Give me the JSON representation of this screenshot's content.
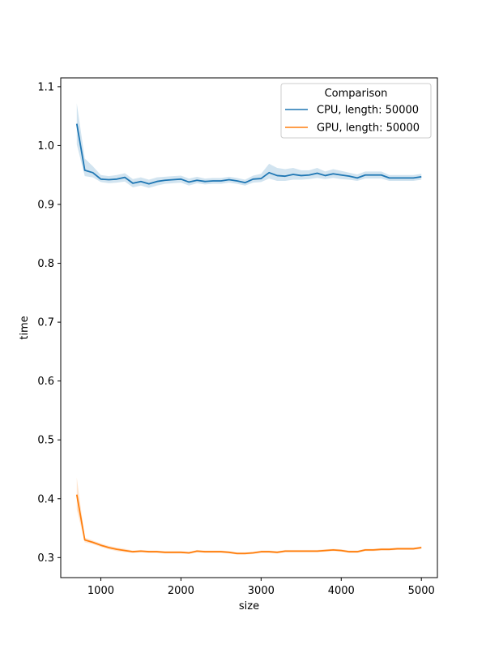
{
  "chart_data": {
    "type": "line",
    "title": "",
    "xlabel": "size",
    "ylabel": "time",
    "xlim": [
      500,
      5200
    ],
    "ylim": [
      0.266,
      1.115
    ],
    "x_ticks": [
      1000,
      2000,
      3000,
      4000,
      5000
    ],
    "y_ticks": [
      0.3,
      0.4,
      0.5,
      0.6,
      0.7,
      0.8,
      0.9,
      1.0,
      1.1
    ],
    "x_tick_labels": [
      "1000",
      "2000",
      "3000",
      "4000",
      "5000"
    ],
    "y_tick_labels": [
      "0.3",
      "0.4",
      "0.5",
      "0.6",
      "0.7",
      "0.8",
      "0.9",
      "1.0",
      "1.1"
    ],
    "grid": false,
    "legend": {
      "title": "Comparison",
      "placement": "top-right"
    },
    "x": [
      700,
      800,
      900,
      1000,
      1100,
      1200,
      1300,
      1400,
      1500,
      1600,
      1700,
      1800,
      1900,
      2000,
      2100,
      2200,
      2300,
      2400,
      2500,
      2600,
      2700,
      2800,
      2900,
      3000,
      3100,
      3200,
      3300,
      3400,
      3500,
      3600,
      3700,
      3800,
      3900,
      4000,
      4100,
      4200,
      4300,
      4400,
      4500,
      4600,
      4700,
      4800,
      4900,
      5000
    ],
    "series": [
      {
        "name": "CPU, length: 50000",
        "color": "#1f77b4",
        "values": [
          1.037,
          0.958,
          0.954,
          0.943,
          0.942,
          0.943,
          0.946,
          0.936,
          0.939,
          0.935,
          0.939,
          0.941,
          0.942,
          0.943,
          0.938,
          0.941,
          0.939,
          0.94,
          0.94,
          0.942,
          0.94,
          0.937,
          0.943,
          0.944,
          0.954,
          0.949,
          0.948,
          0.951,
          0.949,
          0.95,
          0.953,
          0.949,
          0.952,
          0.95,
          0.948,
          0.945,
          0.95,
          0.95,
          0.95,
          0.945,
          0.945,
          0.945,
          0.945,
          0.947
        ],
        "lower": [
          1.002,
          0.948,
          0.946,
          0.938,
          0.936,
          0.937,
          0.939,
          0.929,
          0.932,
          0.928,
          0.932,
          0.935,
          0.936,
          0.937,
          0.932,
          0.936,
          0.934,
          0.935,
          0.935,
          0.937,
          0.935,
          0.932,
          0.937,
          0.938,
          0.944,
          0.94,
          0.94,
          0.942,
          0.942,
          0.943,
          0.945,
          0.943,
          0.945,
          0.943,
          0.942,
          0.94,
          0.944,
          0.944,
          0.944,
          0.94,
          0.94,
          0.94,
          0.94,
          0.942
        ],
        "upper": [
          1.072,
          0.978,
          0.965,
          0.95,
          0.948,
          0.95,
          0.953,
          0.943,
          0.946,
          0.942,
          0.946,
          0.947,
          0.948,
          0.949,
          0.944,
          0.947,
          0.944,
          0.945,
          0.945,
          0.947,
          0.945,
          0.942,
          0.949,
          0.952,
          0.969,
          0.962,
          0.96,
          0.962,
          0.958,
          0.958,
          0.962,
          0.956,
          0.96,
          0.957,
          0.954,
          0.951,
          0.956,
          0.956,
          0.956,
          0.95,
          0.95,
          0.95,
          0.95,
          0.952
        ]
      },
      {
        "name": "GPU, length: 50000",
        "color": "#ff7f0e",
        "values": [
          0.407,
          0.33,
          0.326,
          0.321,
          0.317,
          0.314,
          0.312,
          0.31,
          0.311,
          0.31,
          0.31,
          0.309,
          0.309,
          0.309,
          0.308,
          0.311,
          0.31,
          0.31,
          0.31,
          0.309,
          0.307,
          0.307,
          0.308,
          0.31,
          0.31,
          0.309,
          0.311,
          0.311,
          0.311,
          0.311,
          0.311,
          0.312,
          0.313,
          0.312,
          0.31,
          0.31,
          0.313,
          0.313,
          0.314,
          0.314,
          0.315,
          0.315,
          0.315,
          0.317
        ],
        "lower": [
          0.382,
          0.326,
          0.323,
          0.318,
          0.314,
          0.311,
          0.309,
          0.308,
          0.309,
          0.308,
          0.308,
          0.307,
          0.307,
          0.307,
          0.306,
          0.309,
          0.308,
          0.308,
          0.308,
          0.307,
          0.305,
          0.305,
          0.306,
          0.308,
          0.308,
          0.307,
          0.309,
          0.309,
          0.309,
          0.309,
          0.309,
          0.31,
          0.311,
          0.31,
          0.308,
          0.308,
          0.311,
          0.311,
          0.312,
          0.312,
          0.313,
          0.313,
          0.313,
          0.315
        ],
        "upper": [
          0.436,
          0.334,
          0.329,
          0.324,
          0.32,
          0.317,
          0.315,
          0.312,
          0.313,
          0.312,
          0.312,
          0.311,
          0.311,
          0.311,
          0.31,
          0.313,
          0.312,
          0.312,
          0.312,
          0.311,
          0.309,
          0.309,
          0.31,
          0.312,
          0.312,
          0.311,
          0.313,
          0.313,
          0.313,
          0.313,
          0.313,
          0.314,
          0.315,
          0.314,
          0.312,
          0.312,
          0.315,
          0.315,
          0.316,
          0.316,
          0.317,
          0.317,
          0.317,
          0.319
        ]
      }
    ]
  }
}
